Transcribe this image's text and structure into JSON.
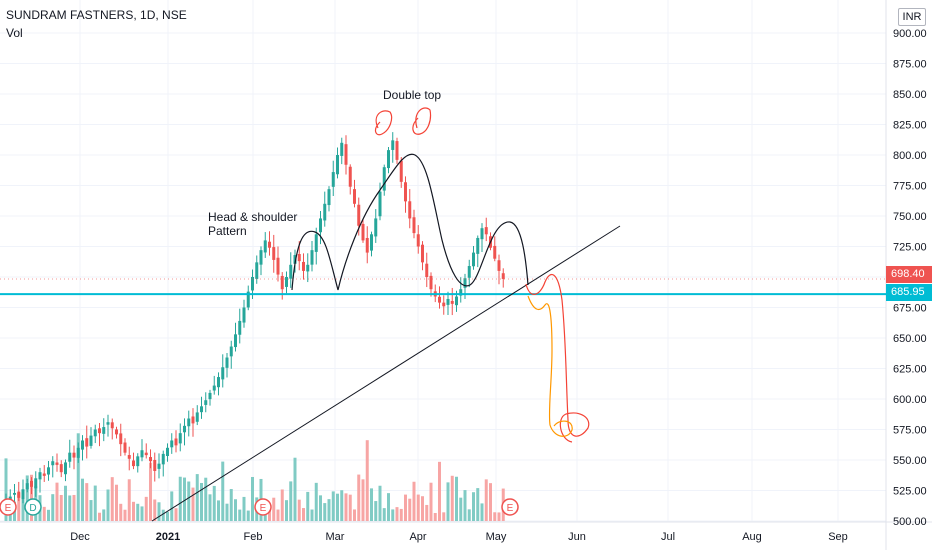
{
  "header": {
    "title": "SUNDRAM FASTNERS, 1D, NSE",
    "volume_label": "Vol"
  },
  "currency": "INR",
  "price_labels": {
    "last": "698.40",
    "line": "685.95"
  },
  "annotations": {
    "double_top": "Double top",
    "hs_line1": "Head & shoulder",
    "hs_line2": "Pattern"
  },
  "event_markers": [
    "E",
    "D",
    "E",
    "E"
  ],
  "colors": {
    "up": "#26a69a",
    "down": "#ef5350",
    "up_vol": "#80cbc4",
    "down_vol": "#f7a5a4",
    "hline": "#00bcd4",
    "projection_red": "#f44336",
    "projection_orange": "#ff9800"
  },
  "chart_data": {
    "type": "candlestick",
    "y_axis": {
      "ticks": [
        "900.00",
        "875.00",
        "850.00",
        "825.00",
        "800.00",
        "775.00",
        "750.00",
        "725.00",
        "700.00",
        "675.00",
        "650.00",
        "625.00",
        "600.00",
        "575.00",
        "550.00",
        "525.00",
        "500.00"
      ],
      "range": [
        495,
        906
      ]
    },
    "x_axis": {
      "ticks": [
        "Dec",
        "2021",
        "Feb",
        "Mar",
        "Apr",
        "May",
        "Jun",
        "Jul",
        "Aug",
        "Sep"
      ]
    },
    "horizontal_line": 685.95,
    "last_price": 698.4,
    "close_series": [
      516,
      520,
      523,
      519,
      526,
      531,
      528,
      535,
      540,
      537,
      544,
      549,
      546,
      540,
      548,
      556,
      552,
      560,
      566,
      561,
      570,
      575,
      572,
      577,
      581,
      576,
      571,
      563,
      556,
      551,
      545,
      553,
      558,
      554,
      549,
      541,
      547,
      555,
      560,
      566,
      562,
      572,
      578,
      584,
      580,
      589,
      594,
      599,
      605,
      611,
      618,
      626,
      634,
      643,
      653,
      664,
      675,
      688,
      700,
      712,
      722,
      730,
      724,
      714,
      702,
      690,
      700,
      710,
      718,
      713,
      705,
      710,
      722,
      735,
      748,
      760,
      772,
      786,
      800,
      810,
      792,
      774,
      760,
      742,
      730,
      720,
      735,
      748,
      770,
      790,
      804,
      812,
      796,
      778,
      762,
      748,
      736,
      725,
      712,
      700,
      690,
      684,
      679,
      676,
      682,
      678,
      684,
      690,
      699,
      709,
      720,
      732,
      740,
      735,
      724,
      715,
      705,
      698.4
    ]
  }
}
